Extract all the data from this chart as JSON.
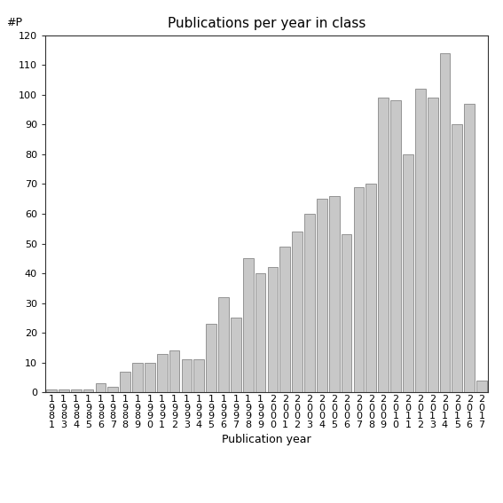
{
  "title": "Publications per year in class",
  "xlabel": "Publication year",
  "ylabel": "#P",
  "years": [
    "1981",
    "1983",
    "1984",
    "1985",
    "1986",
    "1987",
    "1988",
    "1989",
    "1990",
    "1991",
    "1992",
    "1993",
    "1994",
    "1995",
    "1996",
    "1997",
    "1998",
    "1999",
    "2000",
    "2001",
    "2002",
    "2003",
    "2004",
    "2005",
    "2006",
    "2007",
    "2008",
    "2009",
    "2010",
    "2011",
    "2012",
    "2013",
    "2014",
    "2015",
    "2016",
    "2017"
  ],
  "values": [
    1,
    1,
    1,
    1,
    3,
    2,
    7,
    10,
    10,
    13,
    14,
    11,
    11,
    23,
    32,
    25,
    45,
    40,
    42,
    49,
    54,
    60,
    65,
    66,
    53,
    69,
    70,
    99,
    98,
    80,
    102,
    99,
    114,
    90,
    97,
    4
  ],
  "bar_color": "#c8c8c8",
  "bar_edgecolor": "#888888",
  "ylim": [
    0,
    120
  ],
  "yticks": [
    0,
    10,
    20,
    30,
    40,
    50,
    60,
    70,
    80,
    90,
    100,
    110,
    120
  ],
  "background_color": "#ffffff",
  "title_fontsize": 11,
  "axis_label_fontsize": 9,
  "tick_fontsize": 8
}
